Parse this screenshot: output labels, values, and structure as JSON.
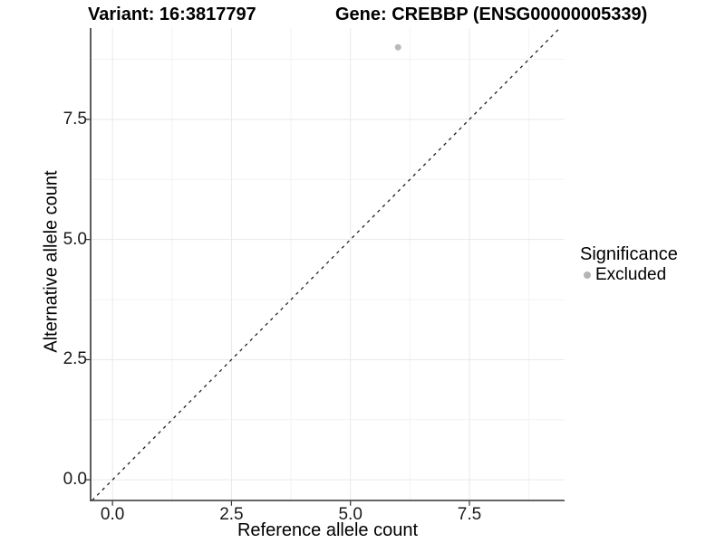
{
  "chart_data": {
    "type": "scatter",
    "title_left": "Variant: 16:3817797",
    "title_right": "Gene: CREBBP (ENSG00000005339)",
    "xlabel": "Reference allele count",
    "ylabel": "Alternative allele count",
    "points": [
      {
        "x": 6,
        "y": 9,
        "group": "Excluded"
      }
    ],
    "xlim": [
      -0.46,
      9.5
    ],
    "ylim": [
      -0.43,
      9.4
    ],
    "x_ticks": {
      "values": [
        0,
        2.5,
        5,
        7.5
      ],
      "labels": [
        "0.0",
        "2.5",
        "5.0",
        "7.5"
      ]
    },
    "y_ticks": {
      "values": [
        0,
        2.5,
        5,
        7.5
      ],
      "labels": [
        "0.0",
        "2.5",
        "5.0",
        "7.5"
      ]
    },
    "x_minor": [
      1.25,
      3.75,
      6.25,
      8.75
    ],
    "y_minor": [
      1.25,
      3.75,
      6.25,
      8.75
    ],
    "grid": "major-and-minor",
    "identity_line": {
      "slope": 1,
      "intercept": 0,
      "style": "dashed",
      "color": "#222222"
    },
    "legend": {
      "title": "Significance",
      "position": "right",
      "items": [
        {
          "label": "Excluded",
          "color": "#b4b4b4"
        }
      ]
    },
    "colors": {
      "background": "#ffffff",
      "grid_major": "#e9e9e9",
      "grid_minor": "#f3f3f3",
      "axis_line": "#333333",
      "tick_mark": "#333333",
      "point_excluded": "#b9b9b9"
    }
  }
}
